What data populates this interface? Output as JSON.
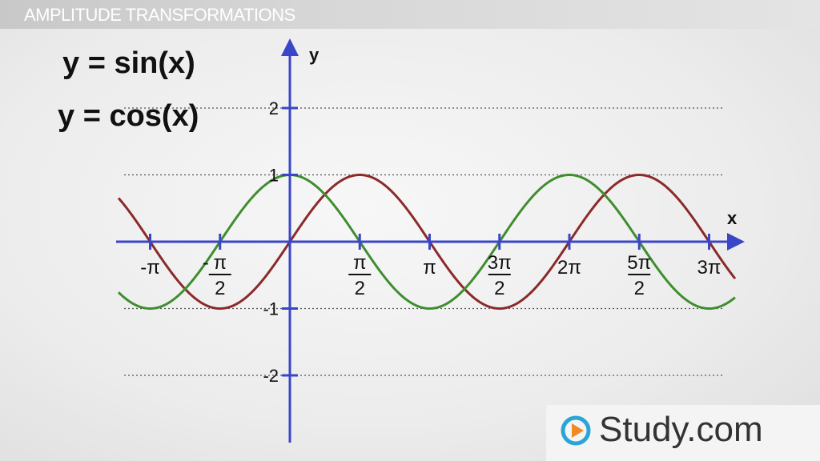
{
  "header": {
    "title": "AMPLITUDE TRANSFORMATIONS"
  },
  "equations": {
    "sin": "y = sin(x)",
    "cos": "y = cos(x)"
  },
  "logo": {
    "text": "Study.com"
  },
  "colors": {
    "sin": "#8b2a2a",
    "cos": "#3e8e2e",
    "axis": "#3a46c8",
    "grid": "#555555"
  },
  "chart_data": {
    "type": "line",
    "xlabel": "x",
    "ylabel": "y",
    "xlim": [
      -1.25,
      3.2
    ],
    "ylim": [
      -3,
      3
    ],
    "x_unit": "π",
    "grid": "horizontal dotted at y = 2, 1, -1, -2",
    "xticks": [
      {
        "value": -1,
        "num": "-π",
        "den": ""
      },
      {
        "value": -0.5,
        "num": "π",
        "den": "2",
        "sign": "-"
      },
      {
        "value": 0.5,
        "num": "π",
        "den": "2"
      },
      {
        "value": 1,
        "num": "π",
        "den": ""
      },
      {
        "value": 1.5,
        "num": "3π",
        "den": "2"
      },
      {
        "value": 2,
        "num": "2π",
        "den": ""
      },
      {
        "value": 2.5,
        "num": "5π",
        "den": "2"
      },
      {
        "value": 3,
        "num": "3π",
        "den": ""
      }
    ],
    "yticks": [
      {
        "value": 2,
        "label": "2"
      },
      {
        "value": 1,
        "label": "1"
      },
      {
        "value": -1,
        "label": "-1"
      },
      {
        "value": -2,
        "label": "-2"
      }
    ],
    "series": [
      {
        "name": "y = sin(x)",
        "function": "sin",
        "color": "#8b2a2a"
      },
      {
        "name": "y = cos(x)",
        "function": "cos",
        "color": "#3e8e2e"
      }
    ]
  }
}
